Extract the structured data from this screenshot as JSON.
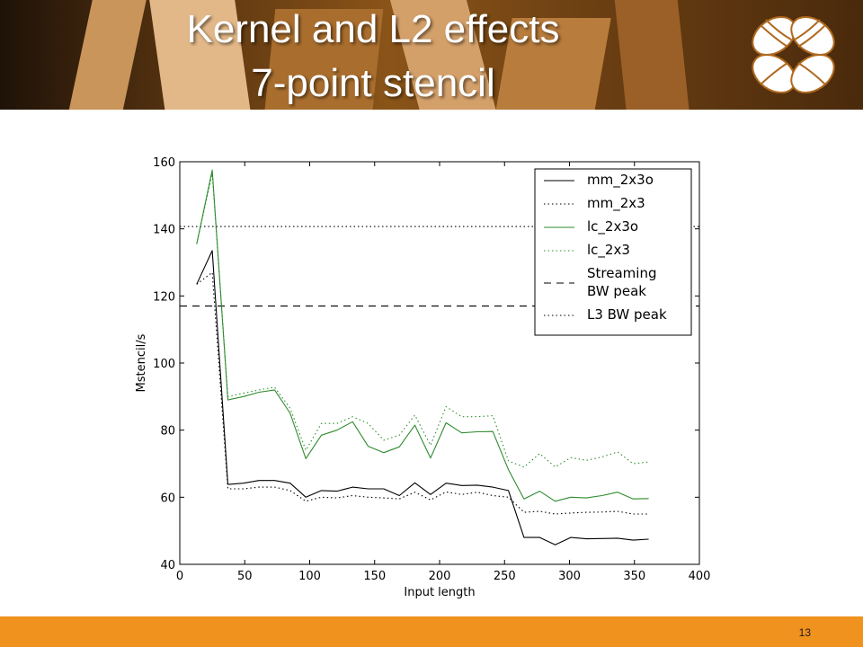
{
  "slide": {
    "title_line1": "Kernel and L2 effects",
    "title_line2": "7-point stencil",
    "page_number": "13"
  },
  "colors": {
    "footer": "#f0921e",
    "series_black": "#000000",
    "series_green": "#2e8b2e"
  },
  "chart_data": {
    "type": "line",
    "xlabel": "Input length",
    "ylabel": "Mstencil/s",
    "xlim": [
      0,
      400
    ],
    "ylim": [
      40,
      160
    ],
    "xticks": [
      0,
      50,
      100,
      150,
      200,
      250,
      300,
      350,
      400
    ],
    "yticks": [
      40,
      60,
      80,
      100,
      120,
      140,
      160
    ],
    "grid": false,
    "legend_position": "top-right",
    "x": [
      13,
      25,
      37,
      49,
      61,
      73,
      85,
      97,
      109,
      121,
      133,
      145,
      157,
      169,
      181,
      193,
      205,
      217,
      229,
      241,
      253,
      265,
      277,
      289,
      301,
      313,
      325,
      337,
      349,
      361
    ],
    "series": [
      {
        "name": "mm_2x3o",
        "color": "#000000",
        "style": "solid",
        "values": [
          123.5,
          133.5,
          63.8,
          64.2,
          65.0,
          65.0,
          64.2,
          60.0,
          62.0,
          61.8,
          63.0,
          62.5,
          62.5,
          60.5,
          64.3,
          60.8,
          64.2,
          63.5,
          63.6,
          63.0,
          62.0,
          48.0,
          48.0,
          45.8,
          48.0,
          47.6,
          47.7,
          47.8,
          47.2,
          47.5
        ]
      },
      {
        "name": "mm_2x3",
        "color": "#000000",
        "style": "dotted",
        "values": [
          123.5,
          127.0,
          62.5,
          62.5,
          63.0,
          63.0,
          62.0,
          58.8,
          60.0,
          59.8,
          60.5,
          60.0,
          59.8,
          59.5,
          61.5,
          59.2,
          61.6,
          60.8,
          61.5,
          60.5,
          60.0,
          55.5,
          55.8,
          55.0,
          55.3,
          55.5,
          55.6,
          55.8,
          55.0,
          55.0
        ]
      },
      {
        "name": "lc_2x3o",
        "color": "#2e8b2e",
        "style": "solid",
        "values": [
          135.5,
          157.5,
          89.0,
          90.0,
          91.3,
          92.0,
          85.0,
          71.5,
          78.5,
          80.0,
          82.5,
          75.2,
          73.3,
          75.0,
          81.5,
          71.7,
          82.2,
          79.2,
          79.5,
          79.6,
          68.2,
          59.5,
          61.8,
          58.8,
          60.0,
          59.8,
          60.5,
          61.5,
          59.5,
          59.6
        ]
      },
      {
        "name": "lc_2x3",
        "color": "#2e8b2e",
        "style": "dotted",
        "values": [
          135.5,
          156.5,
          90.0,
          91.0,
          92.0,
          92.8,
          86.5,
          74.0,
          82.0,
          82.0,
          84.0,
          82.0,
          77.0,
          78.5,
          84.5,
          75.5,
          87.0,
          84.0,
          84.0,
          84.3,
          70.8,
          69.0,
          73.0,
          69.0,
          71.8,
          71.0,
          72.0,
          73.5,
          70.0,
          70.5
        ]
      },
      {
        "name": "Streaming BW peak",
        "color": "#000000",
        "style": "dashed",
        "horizontal": 117.0
      },
      {
        "name": "L3 BW peak",
        "color": "#000000",
        "style": "dotted",
        "horizontal": 140.7
      }
    ],
    "legend": [
      {
        "lines": [
          "mm_2x3o"
        ]
      },
      {
        "lines": [
          "mm_2x3"
        ]
      },
      {
        "lines": [
          "lc_2x3o"
        ]
      },
      {
        "lines": [
          "lc_2x3"
        ]
      },
      {
        "lines": [
          "Streaming",
          "BW peak"
        ]
      },
      {
        "lines": [
          "L3 BW peak"
        ]
      }
    ]
  }
}
